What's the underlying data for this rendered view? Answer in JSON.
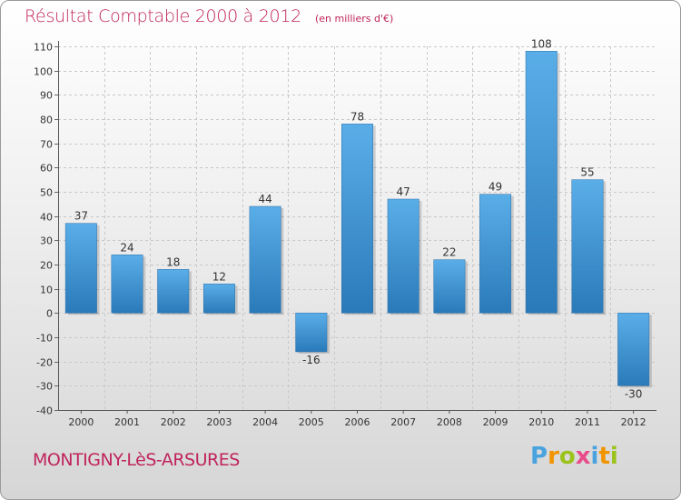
{
  "header": {
    "title": "Résultat Comptable 2000 à 2012",
    "subtitle": "(en milliers d'€)"
  },
  "footer": {
    "commune": "MONTIGNY-LèS-ARSURES",
    "logo": [
      "P",
      "r",
      "o",
      "x",
      "i",
      "t",
      "i"
    ]
  },
  "colors": {
    "title": "#c0245c",
    "bar_light": "#5aaee8",
    "bar_dark": "#2a7ab9"
  },
  "chart_data": {
    "type": "bar",
    "title": "Résultat Comptable 2000 à 2012",
    "subtitle": "(en milliers d'€)",
    "categories": [
      "2000",
      "2001",
      "2002",
      "2003",
      "2004",
      "2005",
      "2006",
      "2007",
      "2008",
      "2009",
      "2010",
      "2011",
      "2012"
    ],
    "values": [
      37,
      24,
      18,
      12,
      44,
      -16,
      78,
      47,
      22,
      49,
      108,
      55,
      -30
    ],
    "ylim": [
      -40,
      110
    ],
    "yticks": [
      110,
      100,
      90,
      80,
      70,
      60,
      50,
      40,
      30,
      20,
      10,
      0,
      -10,
      -20,
      -30,
      -40
    ],
    "grid": true,
    "legend": "none"
  }
}
